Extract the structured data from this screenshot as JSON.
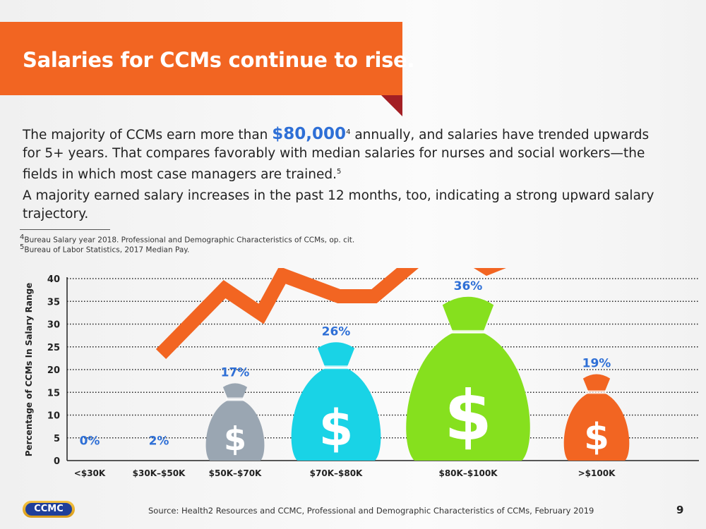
{
  "title": "Salaries for CCMs continue to rise.",
  "paragraph1": {
    "before": "The majority of CCMs earn more than ",
    "highlight": "$80,000",
    "sup": "4",
    "after": " annually, and salaries have trended upwards for 5+ years. That compares favorably with median salaries for nurses and social workers—the fields in which most case managers are trained.",
    "sup2": "5"
  },
  "paragraph2": "A majority earned salary increases in the past 12 months, too, indicating a strong upward salary trajectory.",
  "footnotes": [
    {
      "num": "4",
      "text": "Bureau Salary year 2018. Professional and Demographic Characteristics of CCMs, op. cit."
    },
    {
      "num": "5",
      "text": "Bureau of Labor Statistics, 2017 Median Pay."
    }
  ],
  "source": "Source: Health2 Resources and CCMC, Professional and Demographic Characteristics of CCMs, February 2019",
  "page_number": "9",
  "logo_text": "CCMC",
  "chart_data": {
    "type": "bar",
    "categories": [
      "<$30K",
      "$30K–$50K",
      "$50K–$70K",
      "$70K–$80K",
      "$80K–$100K",
      ">$100K"
    ],
    "values": [
      0,
      2,
      17,
      26,
      36,
      19
    ],
    "data_labels": [
      "0%",
      "2%",
      "17%",
      "26%",
      "36%",
      "19%"
    ],
    "ylabel": "Percentage of CCMs In Salary Range",
    "ylim": [
      0,
      40
    ],
    "yticks": [
      0,
      5,
      10,
      15,
      20,
      25,
      30,
      35,
      40
    ],
    "grid": "dotted horizontal",
    "bar_colors": [
      "#9aa6b2",
      "#9aa6b2",
      "#9aa6b2",
      "#19d3e6",
      "#86e01e",
      "#f26522"
    ],
    "label_color": "#2e6fd6",
    "arrow_color": "#f26522"
  }
}
